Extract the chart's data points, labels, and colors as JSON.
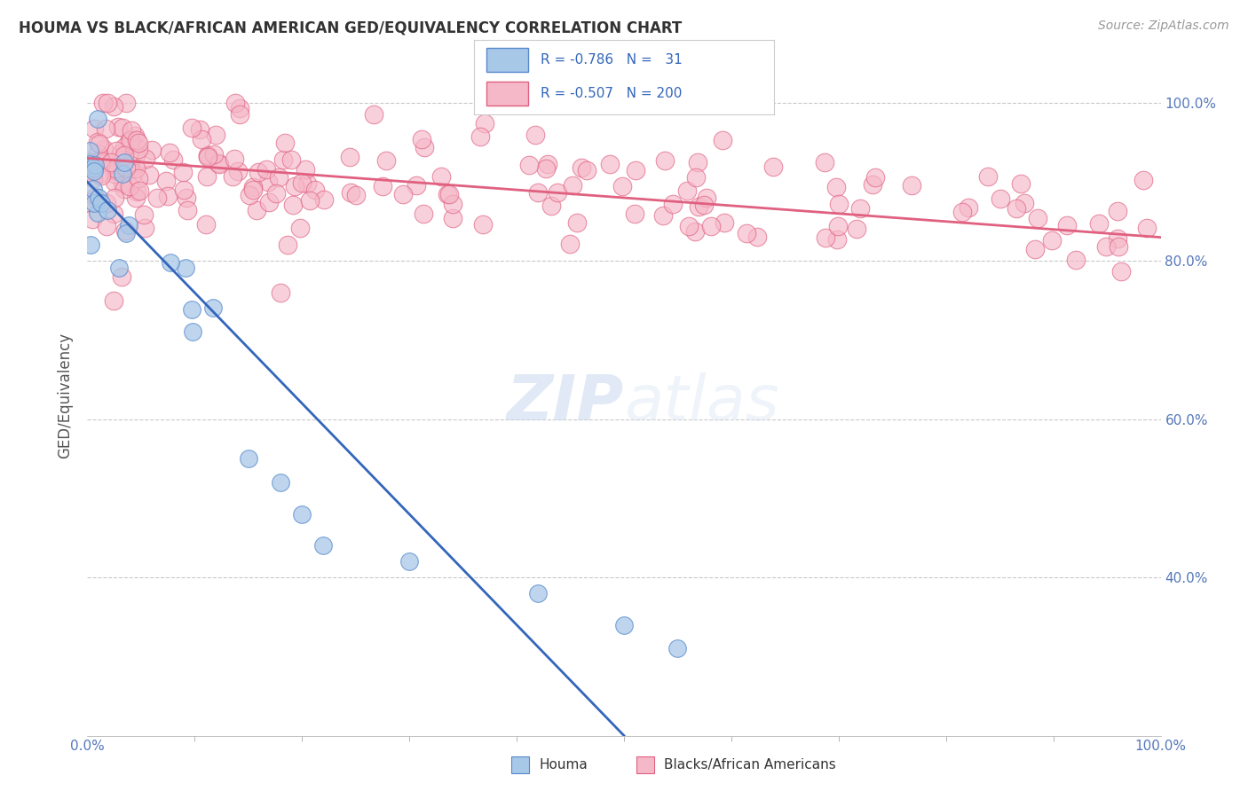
{
  "title": "HOUMA VS BLACK/AFRICAN AMERICAN GED/EQUIVALENCY CORRELATION CHART",
  "source": "Source: ZipAtlas.com",
  "ylabel": "GED/Equivalency",
  "watermark_zip": "ZIP",
  "watermark_atlas": "atlas",
  "legend_line1": "R = -0.786   N =   31",
  "legend_line2": "R = -0.507   N = 200",
  "legend_label1": "Houma",
  "legend_label2": "Blacks/African Americans",
  "houma_color": "#a8c8e8",
  "houma_edge": "#5588cc",
  "pink_color": "#f5b8c8",
  "pink_edge": "#e06080",
  "blue_line_color": "#3366bb",
  "pink_line_color": "#e06080",
  "blue_trendline_x0": 0,
  "blue_trendline_y0": 90,
  "blue_trendline_x1": 50,
  "blue_trendline_y1": 20,
  "pink_trendline_x0": 0,
  "pink_trendline_y0": 93,
  "pink_trendline_x1": 100,
  "pink_trendline_y1": 83,
  "xlim": [
    0,
    100
  ],
  "ylim": [
    20,
    106
  ],
  "yticks": [
    40,
    60,
    80,
    100
  ],
  "ytick_labels": [
    "40.0%",
    "60.0%",
    "80.0%",
    "100.0%"
  ],
  "title_fontsize": 12,
  "source_fontsize": 10,
  "axis_label_color": "#5577bb",
  "tick_label_color": "#5577bb"
}
